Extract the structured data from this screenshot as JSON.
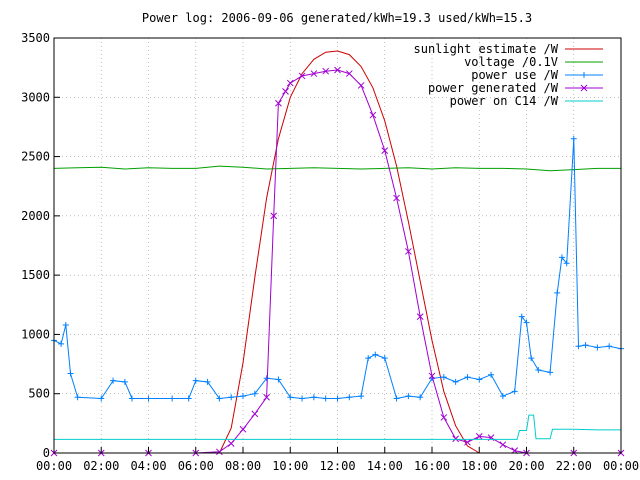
{
  "chart_data": {
    "type": "line",
    "title": "Power log: 2006-09-06 generated/kWh=19.3 used/kWh=15.3",
    "xlabel": "",
    "ylabel": "",
    "xlim": [
      0,
      24
    ],
    "ylim": [
      0,
      3500
    ],
    "grid": true,
    "legend_position": "top-right",
    "x_ticks": [
      "00:00",
      "02:00",
      "04:00",
      "06:00",
      "08:00",
      "10:00",
      "12:00",
      "14:00",
      "16:00",
      "18:00",
      "20:00",
      "22:00",
      "00:00"
    ],
    "y_ticks": [
      0,
      500,
      1000,
      1500,
      2000,
      2500,
      3000,
      3500
    ],
    "series": [
      {
        "name": "sunlight estimate /W",
        "color": "#cc0000",
        "marker": "none",
        "x": [
          7.0,
          7.5,
          8.0,
          8.5,
          9.0,
          9.5,
          10.0,
          10.5,
          11.0,
          11.5,
          12.0,
          12.5,
          13.0,
          13.5,
          14.0,
          14.5,
          15.0,
          15.5,
          16.0,
          16.5,
          17.0,
          17.5,
          18.0
        ],
        "y": [
          0,
          210,
          760,
          1480,
          2150,
          2650,
          3000,
          3200,
          3320,
          3380,
          3390,
          3360,
          3260,
          3080,
          2800,
          2420,
          1950,
          1450,
          950,
          520,
          230,
          60,
          0
        ]
      },
      {
        "name": "voltage /0.1V",
        "color": "#00a000",
        "marker": "none",
        "x": [
          0,
          1,
          2,
          3,
          4,
          5,
          6,
          7,
          8,
          9,
          10,
          11,
          12,
          13,
          14,
          15,
          16,
          17,
          18,
          19,
          20,
          21,
          22,
          23,
          24
        ],
        "y": [
          2400,
          2405,
          2410,
          2395,
          2405,
          2400,
          2400,
          2420,
          2410,
          2395,
          2400,
          2405,
          2400,
          2395,
          2400,
          2405,
          2395,
          2405,
          2400,
          2400,
          2395,
          2380,
          2390,
          2400,
          2400
        ]
      },
      {
        "name": "power use /W",
        "color": "#0080ff",
        "marker": "plus",
        "x": [
          0,
          0.3,
          0.5,
          0.7,
          1.0,
          2.0,
          2.5,
          3.0,
          3.3,
          4.0,
          5.0,
          5.7,
          6.0,
          6.5,
          7.0,
          7.5,
          8.0,
          8.5,
          9.0,
          9.5,
          10.0,
          10.5,
          11.0,
          11.5,
          12.0,
          12.5,
          13.0,
          13.3,
          13.6,
          14.0,
          14.5,
          15.0,
          15.5,
          16.0,
          16.5,
          17.0,
          17.5,
          18.0,
          18.5,
          19.0,
          19.5,
          19.8,
          20.0,
          20.2,
          20.5,
          21.0,
          21.3,
          21.5,
          21.7,
          22.0,
          22.2,
          22.5,
          23.0,
          23.5,
          24.0
        ],
        "y": [
          950,
          920,
          1080,
          670,
          470,
          460,
          610,
          600,
          460,
          460,
          460,
          460,
          610,
          600,
          460,
          470,
          480,
          500,
          630,
          620,
          470,
          460,
          470,
          460,
          460,
          470,
          480,
          800,
          830,
          800,
          460,
          480,
          470,
          630,
          640,
          600,
          640,
          620,
          660,
          480,
          520,
          1150,
          1100,
          800,
          700,
          680,
          1350,
          1650,
          1600,
          2650,
          900,
          910,
          890,
          900,
          880
        ]
      },
      {
        "name": "power generated /W",
        "color": "#a000d0",
        "marker": "cross",
        "x": [
          0,
          2,
          4,
          6,
          7.0,
          7.5,
          8.0,
          8.5,
          9.0,
          9.3,
          9.5,
          9.8,
          10.0,
          10.5,
          11.0,
          11.5,
          12.0,
          12.5,
          13.0,
          13.5,
          14.0,
          14.5,
          15.0,
          15.5,
          16.0,
          16.5,
          17.0,
          17.5,
          18.0,
          18.5,
          19.0,
          19.5,
          20.0,
          22,
          24
        ],
        "y": [
          0,
          0,
          0,
          0,
          10,
          80,
          200,
          330,
          470,
          2000,
          2950,
          3050,
          3120,
          3180,
          3200,
          3220,
          3230,
          3200,
          3100,
          2850,
          2550,
          2150,
          1700,
          1150,
          650,
          300,
          120,
          90,
          140,
          130,
          70,
          20,
          0,
          0,
          0
        ]
      },
      {
        "name": "power on C14 /W",
        "color": "#00cccc",
        "marker": "none",
        "x": [
          0,
          4,
          8,
          12,
          16,
          19.0,
          19.6,
          19.7,
          20.0,
          20.1,
          20.3,
          20.4,
          21.0,
          21.1,
          22.0,
          23.0,
          24.0
        ],
        "y": [
          115,
          115,
          115,
          115,
          115,
          115,
          115,
          190,
          190,
          320,
          320,
          120,
          120,
          200,
          200,
          195,
          195
        ]
      }
    ]
  }
}
